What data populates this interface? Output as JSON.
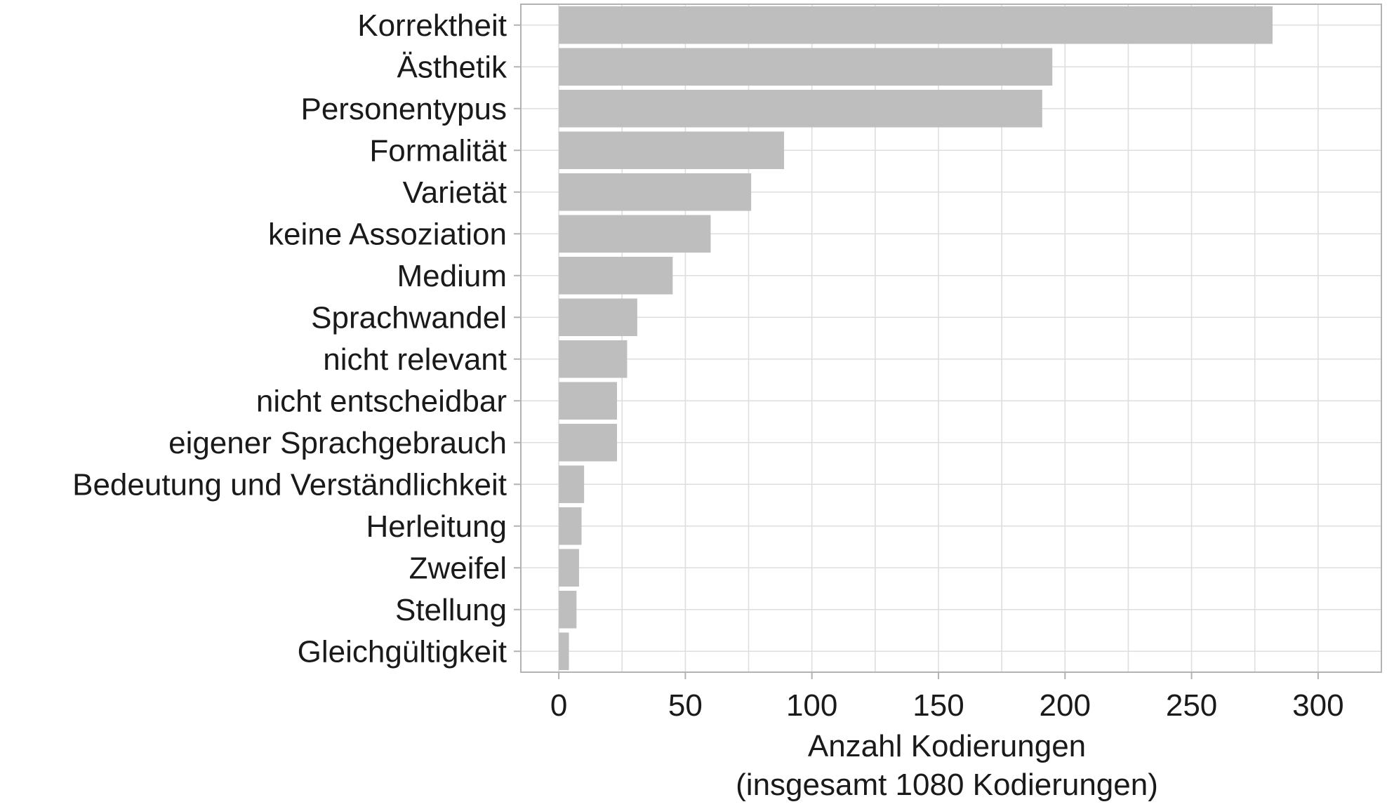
{
  "chart_data": {
    "type": "bar",
    "orientation": "horizontal",
    "categories": [
      "Korrektheit",
      "Ästhetik",
      "Personentypus",
      "Formalität",
      "Varietät",
      "keine Assoziation",
      "Medium",
      "Sprachwandel",
      "nicht relevant",
      "nicht entscheidbar",
      "eigener Sprachgebrauch",
      "Bedeutung und Verständlichkeit",
      "Herleitung",
      "Zweifel",
      "Stellung",
      "Gleichgültigkeit"
    ],
    "values": [
      282,
      195,
      191,
      89,
      76,
      60,
      45,
      31,
      27,
      23,
      23,
      10,
      9,
      8,
      7,
      4
    ],
    "xlabel": "Anzahl Kodierungen",
    "xlabel_sub": "(insgesamt 1080 Kodierungen)",
    "ylabel": "",
    "xlim": [
      -15,
      325
    ],
    "xticks": [
      0,
      50,
      100,
      150,
      200,
      250,
      300
    ],
    "grid": true,
    "bar_color": "#bebebe",
    "grid_color": "#dedede",
    "panel_border_color": "#b3b3b3"
  }
}
